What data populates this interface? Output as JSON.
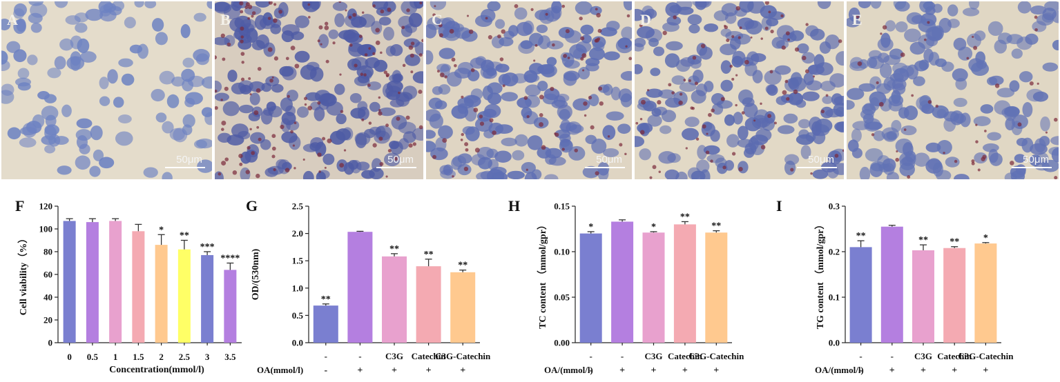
{
  "micrographs": [
    {
      "letter": "A",
      "scale": "50μm",
      "bg": "#e4dccb",
      "cell": "#6d82c2",
      "lipid": "none"
    },
    {
      "letter": "B",
      "scale": "50μm",
      "bg": "#d8cdbf",
      "cell": "#4e5ba5",
      "lipid": "heavy"
    },
    {
      "letter": "C",
      "scale": "50μm",
      "bg": "#dfd5c3",
      "cell": "#5d6eb4",
      "lipid": "medium"
    },
    {
      "letter": "D",
      "scale": "50μm",
      "bg": "#e2d9c6",
      "cell": "#5a6ab0",
      "lipid": "medium"
    },
    {
      "letter": "E",
      "scale": "50μm",
      "bg": "#e0d7c4",
      "cell": "#6172b5",
      "lipid": "light"
    }
  ],
  "chart_data": [
    {
      "panel": "F",
      "type": "bar",
      "categories": [
        "0",
        "0.5",
        "1",
        "1.5",
        "2",
        "2.5",
        "3",
        "3.5"
      ],
      "values": [
        107,
        106,
        107,
        98,
        86,
        82,
        77,
        64
      ],
      "errors": [
        2,
        3,
        2,
        6,
        9,
        8,
        3,
        6
      ],
      "significance": [
        "",
        "",
        "",
        "",
        "*",
        "**",
        "***",
        "****"
      ],
      "colors": [
        "#7a7fd0",
        "#b47fe0",
        "#e8a1ce",
        "#f4aab2",
        "#ffc98f",
        "#ffff66",
        "#7a7fd0",
        "#b47fe0"
      ],
      "xlabel": "Concentration(mmol/l)",
      "ylabel": "Cell viability（%）",
      "ylim": [
        0,
        120
      ],
      "yticks": [
        "0",
        "20",
        "40",
        "60",
        "80",
        "100",
        "120"
      ]
    },
    {
      "panel": "G",
      "type": "bar",
      "categories": [
        "-",
        "-",
        "C3G",
        "Catechin",
        "C3G-Catechin"
      ],
      "oa_row_label": "OA(mmol/l)",
      "oa": [
        "-",
        "+",
        "+",
        "+",
        "+"
      ],
      "values": [
        0.68,
        2.03,
        1.58,
        1.4,
        1.29
      ],
      "errors": [
        0.03,
        0.01,
        0.05,
        0.13,
        0.04
      ],
      "significance": [
        "**",
        "",
        "**",
        "**",
        "**"
      ],
      "colors": [
        "#7a7fd0",
        "#b47fe0",
        "#e8a1ce",
        "#f4aab2",
        "#ffc98f"
      ],
      "ylabel": "OD/(530nm)",
      "ylim": [
        0,
        2.5
      ],
      "yticks": [
        "0.0",
        "0.5",
        "1.0",
        "1.5",
        "2.0",
        "2.5"
      ]
    },
    {
      "panel": "H",
      "type": "bar",
      "categories": [
        "-",
        "-",
        "C3G",
        "Catechin",
        "C3G-Catechin"
      ],
      "oa_row_label": "OA/(mmol/l)",
      "oa": [
        "-",
        "+",
        "+",
        "+",
        "+"
      ],
      "values": [
        0.12,
        0.133,
        0.121,
        0.13,
        0.121
      ],
      "errors": [
        0.002,
        0.002,
        0.001,
        0.003,
        0.002
      ],
      "significance": [
        "*",
        "",
        "*",
        "**",
        "**"
      ],
      "colors": [
        "#7a7fd0",
        "#b47fe0",
        "#e8a1ce",
        "#f4aab2",
        "#ffc98f"
      ],
      "ylabel": "TC content （mmol/gpr）",
      "ylim": [
        0,
        0.15
      ],
      "yticks": [
        "0.00",
        "0.05",
        "0.10",
        "0.15"
      ]
    },
    {
      "panel": "I",
      "type": "bar",
      "categories": [
        "-",
        "-",
        "C3G",
        "Catechin",
        "C3G-Catechin"
      ],
      "oa_row_label": "OA/(mmol/l)",
      "oa": [
        "-",
        "+",
        "+",
        "+",
        "+"
      ],
      "values": [
        0.21,
        0.255,
        0.203,
        0.208,
        0.218
      ],
      "errors": [
        0.014,
        0.003,
        0.012,
        0.003,
        0.002
      ],
      "significance": [
        "**",
        "",
        "**",
        "**",
        "*"
      ],
      "colors": [
        "#7a7fd0",
        "#b47fe0",
        "#e8a1ce",
        "#f4aab2",
        "#ffc98f"
      ],
      "ylabel": "TG content （mmol/gpr）",
      "ylim": [
        0,
        0.3
      ],
      "yticks": [
        "0.0",
        "0.1",
        "0.2",
        "0.3"
      ]
    }
  ]
}
